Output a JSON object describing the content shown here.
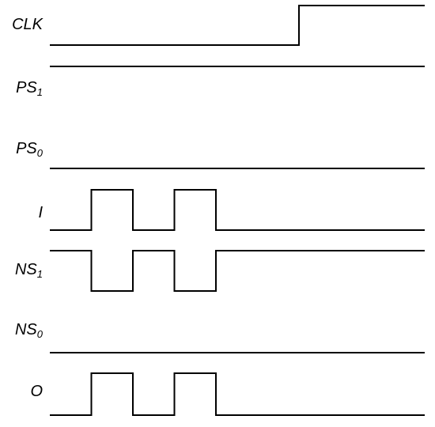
{
  "signals": [
    {
      "id": "clk",
      "name": "CLK",
      "sub": "",
      "wave": [
        0,
        0,
        0,
        0,
        0,
        0,
        1,
        1,
        1,
        1
      ]
    },
    {
      "id": "ps1",
      "name": "PS",
      "sub": "1",
      "wave": [
        1,
        1,
        1,
        1,
        1,
        1,
        1,
        1,
        1,
        1
      ]
    },
    {
      "id": "ps0",
      "name": "PS",
      "sub": "0",
      "wave": [
        0,
        0,
        0,
        0,
        0,
        0,
        0,
        0,
        0,
        0
      ]
    },
    {
      "id": "i",
      "name": "I",
      "sub": "",
      "wave": [
        0,
        1,
        0,
        1,
        0,
        0,
        0,
        0,
        0,
        0
      ]
    },
    {
      "id": "ns1",
      "name": "NS",
      "sub": "1",
      "wave": [
        1,
        0,
        1,
        0,
        1,
        1,
        1,
        1,
        1,
        1
      ]
    },
    {
      "id": "ns0",
      "name": "NS",
      "sub": "0",
      "wave": [
        0,
        0,
        0,
        0,
        0,
        0,
        0,
        0,
        0,
        0
      ]
    },
    {
      "id": "o",
      "name": "O",
      "sub": "",
      "wave": [
        0,
        1,
        0,
        1,
        0,
        0,
        0,
        0,
        0,
        0
      ]
    }
  ],
  "colors": {
    "line": "#000000",
    "text": "#000000",
    "background": "#ffffff"
  }
}
